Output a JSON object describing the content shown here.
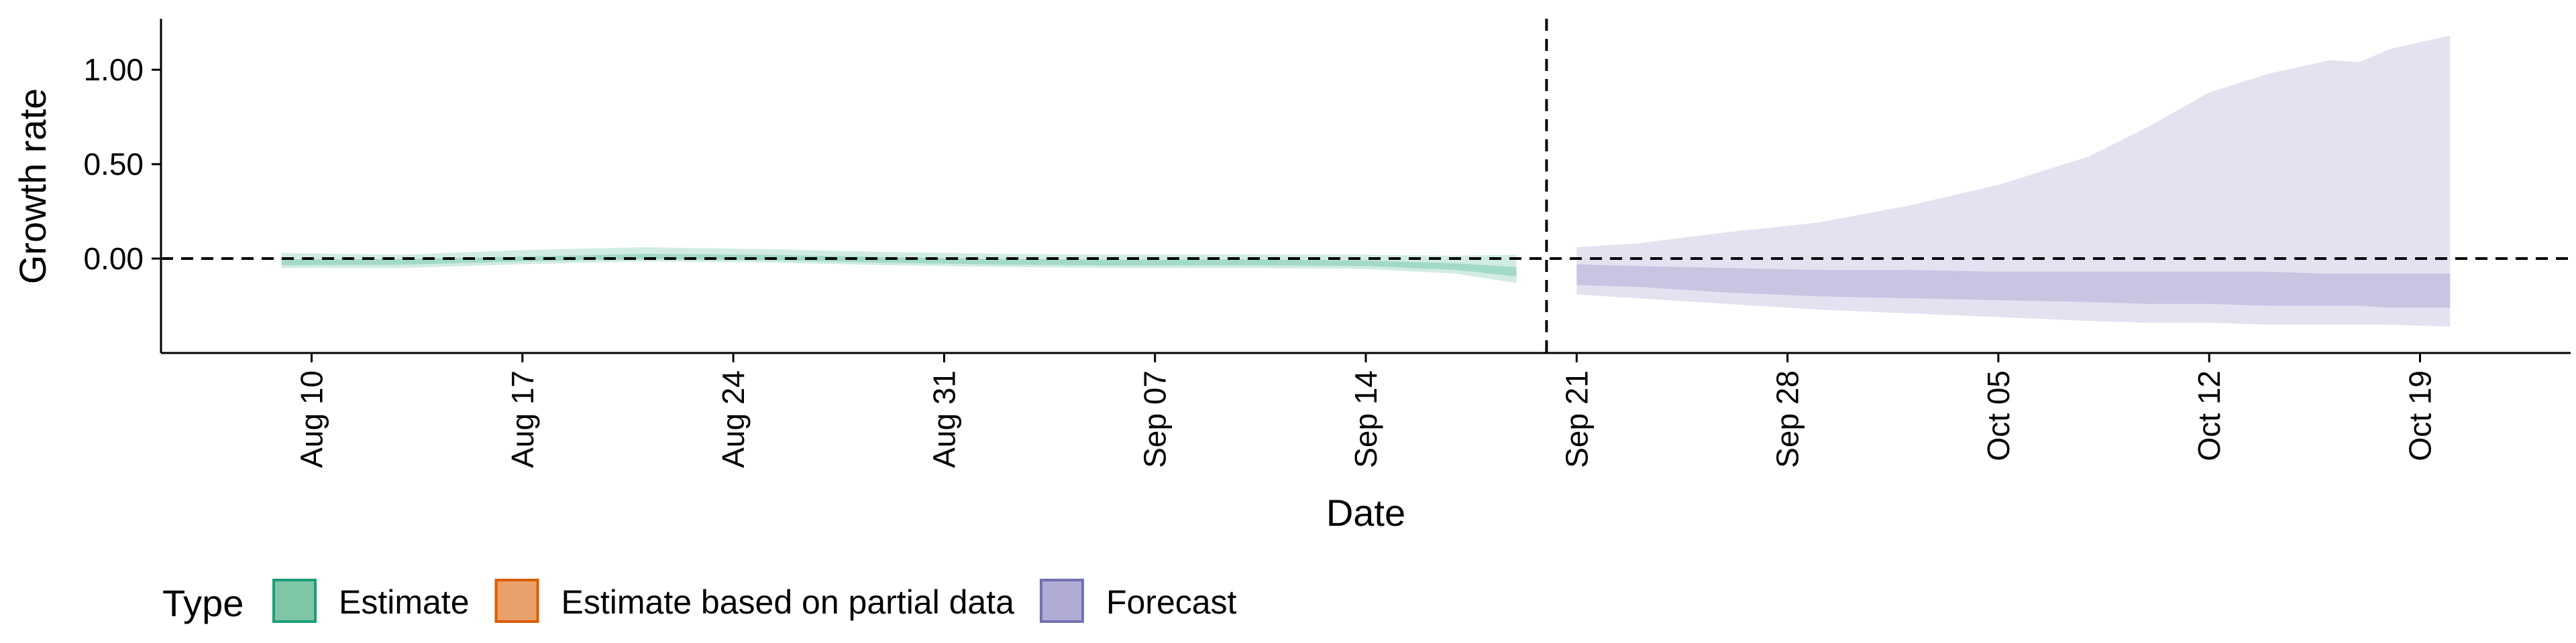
{
  "chart_data": {
    "type": "area",
    "xlabel": "Date",
    "ylabel": "Growth rate",
    "x_ticks": [
      "2020-08-10",
      "2020-08-17",
      "2020-08-24",
      "2020-08-31",
      "2020-09-07",
      "2020-09-14",
      "2020-09-21",
      "2020-09-28",
      "2020-10-05",
      "2020-10-12",
      "2020-10-19"
    ],
    "x_tick_labels": [
      "Aug 10",
      "Aug 17",
      "Aug 24",
      "Aug 31",
      "Sep 07",
      "Sep 14",
      "Sep 21",
      "Sep 28",
      "Oct 05",
      "Oct 12",
      "Oct 19"
    ],
    "xlim": [
      "2020-08-05",
      "2020-10-24"
    ],
    "y_ticks": [
      0,
      0.5,
      1
    ],
    "y_tick_labels": [
      "0.00",
      "0.50",
      "1.00"
    ],
    "ylim": [
      -0.5,
      1.27
    ],
    "hline": 0,
    "vline": "2020-09-20",
    "legend": {
      "title": "Type",
      "position": "bottom-left",
      "entries": [
        {
          "label": "Estimate",
          "fill": "#7fc6a6",
          "stroke": "#1b9e77"
        },
        {
          "label": "Estimate based on partial data",
          "fill": "#eaa06a",
          "stroke": "#d95f02"
        },
        {
          "label": "Forecast",
          "fill": "#b0acd4",
          "stroke": "#7570b3"
        }
      ]
    },
    "series": [
      {
        "name": "Estimate",
        "color": "#1b9e77",
        "points": [
          {
            "x": "2020-08-09",
            "lo90": -0.05,
            "lo50": -0.035,
            "hi50": -0.005,
            "hi90": 0.03
          },
          {
            "x": "2020-08-13",
            "lo90": -0.05,
            "lo50": -0.033,
            "hi50": -0.003,
            "hi90": 0.02
          },
          {
            "x": "2020-08-17",
            "lo90": -0.03,
            "lo50": -0.015,
            "hi50": 0.01,
            "hi90": 0.045
          },
          {
            "x": "2020-08-21",
            "lo90": -0.015,
            "lo50": -0.003,
            "hi50": 0.025,
            "hi90": 0.06
          },
          {
            "x": "2020-08-25",
            "lo90": -0.02,
            "lo50": -0.008,
            "hi50": 0.02,
            "hi90": 0.05
          },
          {
            "x": "2020-08-29",
            "lo90": -0.035,
            "lo50": -0.022,
            "hi50": 0.008,
            "hi90": 0.035
          },
          {
            "x": "2020-09-02",
            "lo90": -0.045,
            "lo50": -0.032,
            "hi50": -0.002,
            "hi90": 0.025
          },
          {
            "x": "2020-09-06",
            "lo90": -0.05,
            "lo50": -0.037,
            "hi50": -0.007,
            "hi90": 0.02
          },
          {
            "x": "2020-09-10",
            "lo90": -0.05,
            "lo50": -0.035,
            "hi50": -0.005,
            "hi90": 0.022
          },
          {
            "x": "2020-09-14",
            "lo90": -0.055,
            "lo50": -0.04,
            "hi50": -0.01,
            "hi90": 0.02
          },
          {
            "x": "2020-09-17",
            "lo90": -0.08,
            "lo50": -0.06,
            "hi50": -0.025,
            "hi90": 0.015
          },
          {
            "x": "2020-09-19",
            "lo90": -0.13,
            "lo50": -0.095,
            "hi50": -0.045,
            "hi90": 0.02
          }
        ]
      },
      {
        "name": "Forecast",
        "color": "#7570b3",
        "points": [
          {
            "x": "2020-09-21",
            "lo90": -0.19,
            "lo50": -0.14,
            "hi50": -0.03,
            "hi90": 0.06
          },
          {
            "x": "2020-09-23",
            "lo90": -0.21,
            "lo50": -0.15,
            "hi50": -0.04,
            "hi90": 0.08
          },
          {
            "x": "2020-09-26",
            "lo90": -0.24,
            "lo50": -0.18,
            "hi50": -0.05,
            "hi90": 0.14
          },
          {
            "x": "2020-09-29",
            "lo90": -0.27,
            "lo50": -0.2,
            "hi50": -0.06,
            "hi90": 0.19
          },
          {
            "x": "2020-10-02",
            "lo90": -0.29,
            "lo50": -0.21,
            "hi50": -0.06,
            "hi90": 0.28
          },
          {
            "x": "2020-10-05",
            "lo90": -0.31,
            "lo50": -0.22,
            "hi50": -0.07,
            "hi90": 0.39
          },
          {
            "x": "2020-10-08",
            "lo90": -0.33,
            "lo50": -0.23,
            "hi50": -0.07,
            "hi90": 0.54
          },
          {
            "x": "2020-10-10",
            "lo90": -0.34,
            "lo50": -0.24,
            "hi50": -0.07,
            "hi90": 0.7
          },
          {
            "x": "2020-10-12",
            "lo90": -0.34,
            "lo50": -0.24,
            "hi50": -0.07,
            "hi90": 0.88
          },
          {
            "x": "2020-10-14",
            "lo90": -0.35,
            "lo50": -0.25,
            "hi50": -0.07,
            "hi90": 0.98
          },
          {
            "x": "2020-10-16",
            "lo90": -0.35,
            "lo50": -0.25,
            "hi50": -0.08,
            "hi90": 1.05
          },
          {
            "x": "2020-10-17",
            "lo90": -0.35,
            "lo50": -0.25,
            "hi50": -0.08,
            "hi90": 1.04
          },
          {
            "x": "2020-10-18",
            "lo90": -0.35,
            "lo50": -0.26,
            "hi50": -0.08,
            "hi90": 1.11
          },
          {
            "x": "2020-10-20",
            "lo90": -0.36,
            "lo50": -0.26,
            "hi50": -0.08,
            "hi90": 1.18
          }
        ]
      }
    ]
  }
}
